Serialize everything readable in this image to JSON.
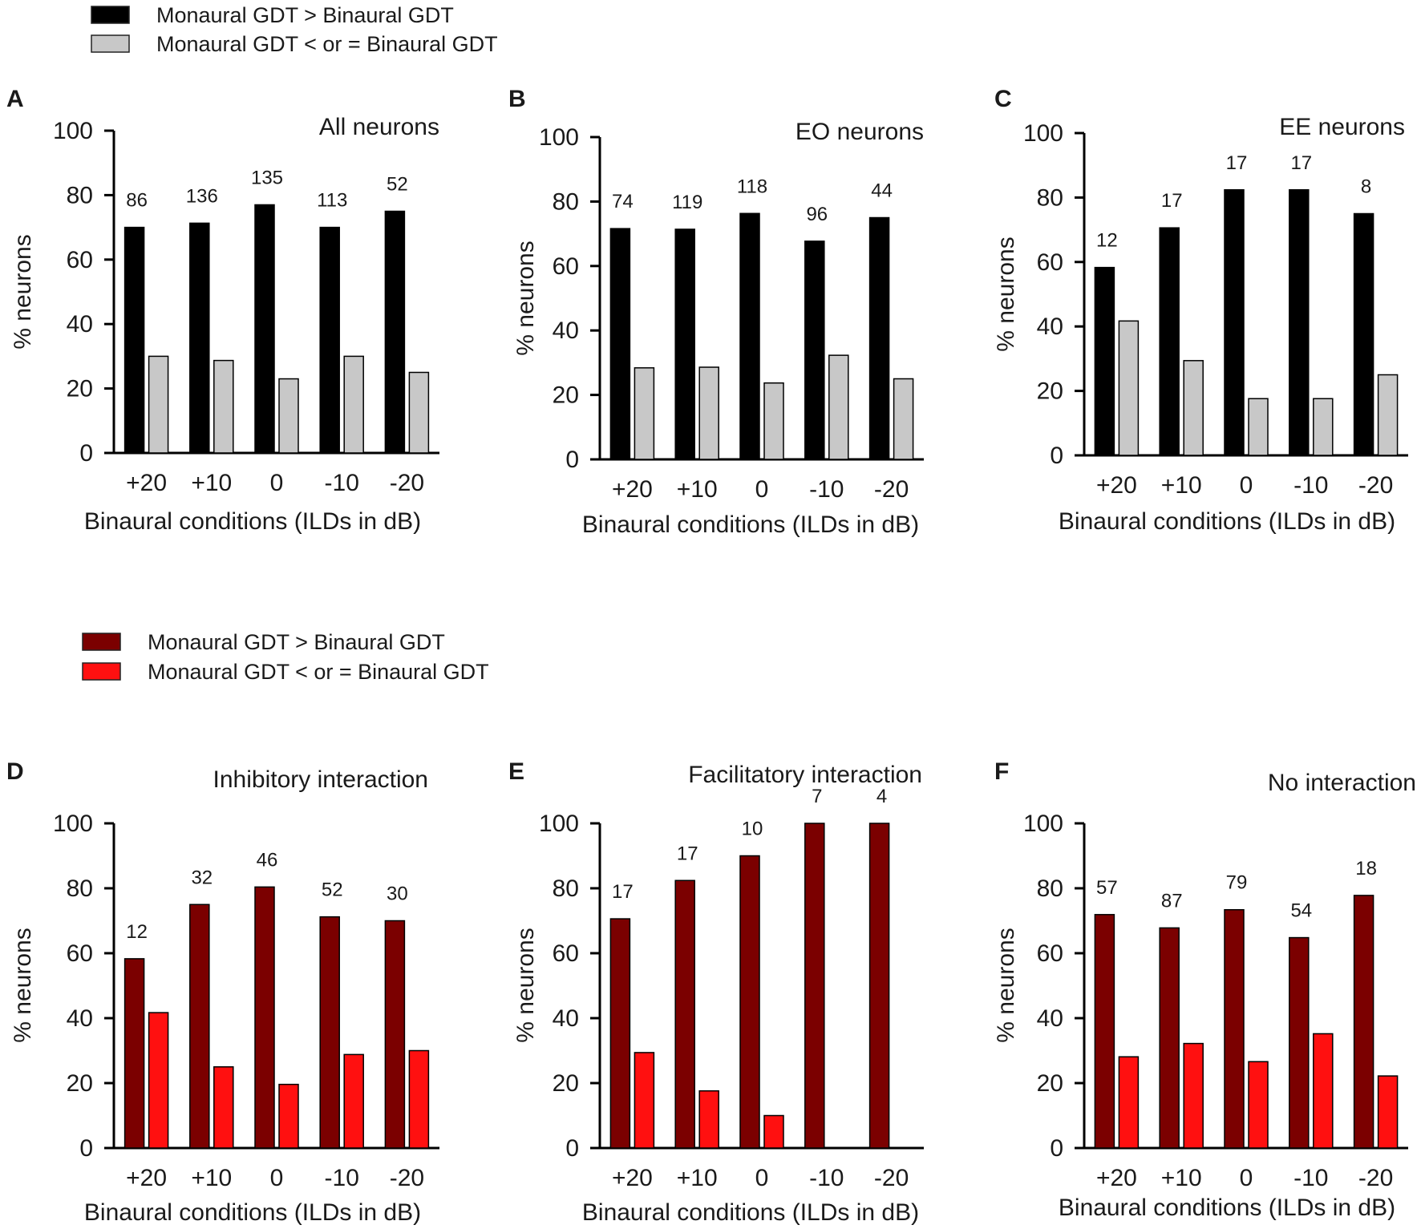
{
  "legends": [
    {
      "entries": [
        {
          "label": "Monaural GDT > Binaural GDT",
          "color": "#000000"
        },
        {
          "label": "Monaural GDT < or = Binaural GDT",
          "color": "#c8c8c8"
        }
      ]
    },
    {
      "entries": [
        {
          "label": "Monaural GDT > Binaural GDT",
          "color": "#7b0000"
        },
        {
          "label": "Monaural GDT < or = Binaural GDT",
          "color": "#ff1010"
        }
      ]
    }
  ],
  "chart_data": [
    {
      "type": "bar",
      "panel": "A",
      "title": "All neurons",
      "xlabel": "Binaural conditions (ILDs in dB)",
      "ylabel": "% neurons",
      "ylim": [
        0,
        100
      ],
      "yticks": [
        "0",
        "20",
        "40",
        "60",
        "80",
        "100"
      ],
      "categories": [
        "+20",
        "+10",
        "0",
        "-10",
        "-20"
      ],
      "series": [
        {
          "name": "Monaural GDT > Binaural GDT",
          "color": "#000000",
          "values": [
            70,
            71.3,
            77,
            70,
            75
          ]
        },
        {
          "name": "Monaural GDT < or = Binaural GDT",
          "color": "#c8c8c8",
          "values": [
            30,
            28.7,
            23,
            30,
            25
          ]
        }
      ],
      "n_labels": [
        "86",
        "136",
        "135",
        "113",
        "52"
      ]
    },
    {
      "type": "bar",
      "panel": "B",
      "title": "EO neurons",
      "xlabel": "Binaural conditions (ILDs in dB)",
      "ylabel": "% neurons",
      "ylim": [
        0,
        100
      ],
      "yticks": [
        "0",
        "20",
        "40",
        "60",
        "80",
        "100"
      ],
      "categories": [
        "+20",
        "+10",
        "0",
        "-10",
        "-20"
      ],
      "series": [
        {
          "name": "Monaural GDT > Binaural GDT",
          "color": "#000000",
          "values": [
            71.6,
            71.4,
            76.3,
            67.7,
            75
          ]
        },
        {
          "name": "Monaural GDT < or = Binaural GDT",
          "color": "#c8c8c8",
          "values": [
            28.4,
            28.6,
            23.7,
            32.3,
            25
          ]
        }
      ],
      "n_labels": [
        "74",
        "119",
        "118",
        "96",
        "44"
      ]
    },
    {
      "type": "bar",
      "panel": "C",
      "title": "EE neurons",
      "xlabel": "Binaural conditions (ILDs in dB)",
      "ylabel": "% neurons",
      "ylim": [
        0,
        100
      ],
      "yticks": [
        "0",
        "20",
        "40",
        "60",
        "80",
        "100"
      ],
      "categories": [
        "+20",
        "+10",
        "0",
        "-10",
        "-20"
      ],
      "series": [
        {
          "name": "Monaural GDT > Binaural GDT",
          "color": "#000000",
          "values": [
            58.3,
            70.6,
            82.4,
            82.4,
            75
          ]
        },
        {
          "name": "Monaural GDT < or = Binaural GDT",
          "color": "#c8c8c8",
          "values": [
            41.7,
            29.4,
            17.6,
            17.6,
            25
          ]
        }
      ],
      "n_labels": [
        "12",
        "17",
        "17",
        "17",
        "8"
      ]
    },
    {
      "type": "bar",
      "panel": "D",
      "title": "Inhibitory interaction",
      "xlabel": "Binaural conditions (ILDs in dB)",
      "ylabel": "% neurons",
      "ylim": [
        0,
        100
      ],
      "yticks": [
        "0",
        "20",
        "40",
        "60",
        "80",
        "100"
      ],
      "categories": [
        "+20",
        "+10",
        "0",
        "-10",
        "-20"
      ],
      "series": [
        {
          "name": "Monaural GDT > Binaural GDT",
          "color": "#7b0000",
          "values": [
            58.3,
            75,
            80.4,
            71.2,
            70
          ]
        },
        {
          "name": "Monaural GDT < or = Binaural GDT",
          "color": "#ff1010",
          "values": [
            41.7,
            25,
            19.6,
            28.8,
            30
          ]
        }
      ],
      "n_labels": [
        "12",
        "32",
        "46",
        "52",
        "30"
      ]
    },
    {
      "type": "bar",
      "panel": "E",
      "title": "Facilitatory interaction",
      "xlabel": "Binaural conditions (ILDs in dB)",
      "ylabel": "% neurons",
      "ylim": [
        0,
        100
      ],
      "yticks": [
        "0",
        "20",
        "40",
        "60",
        "80",
        "100"
      ],
      "categories": [
        "+20",
        "+10",
        "0",
        "-10",
        "-20"
      ],
      "series": [
        {
          "name": "Monaural GDT > Binaural GDT",
          "color": "#7b0000",
          "values": [
            70.6,
            82.4,
            90,
            100,
            100
          ]
        },
        {
          "name": "Monaural GDT < or = Binaural GDT",
          "color": "#ff1010",
          "values": [
            29.4,
            17.6,
            10,
            0,
            0
          ]
        }
      ],
      "n_labels": [
        "17",
        "17",
        "10",
        "7",
        "4"
      ]
    },
    {
      "type": "bar",
      "panel": "F",
      "title": "No interaction",
      "xlabel": "Binaural conditions (ILDs in dB)",
      "ylabel": "% neurons",
      "ylim": [
        0,
        100
      ],
      "yticks": [
        "0",
        "20",
        "40",
        "60",
        "80",
        "100"
      ],
      "categories": [
        "+20",
        "+10",
        "0",
        "-10",
        "-20"
      ],
      "series": [
        {
          "name": "Monaural GDT > Binaural GDT",
          "color": "#7b0000",
          "values": [
            71.9,
            67.8,
            73.4,
            64.8,
            77.8
          ]
        },
        {
          "name": "Monaural GDT < or = Binaural GDT",
          "color": "#ff1010",
          "values": [
            28.1,
            32.2,
            26.6,
            35.2,
            22.2
          ]
        }
      ],
      "n_labels": [
        "57",
        "87",
        "79",
        "54",
        "18"
      ]
    }
  ]
}
